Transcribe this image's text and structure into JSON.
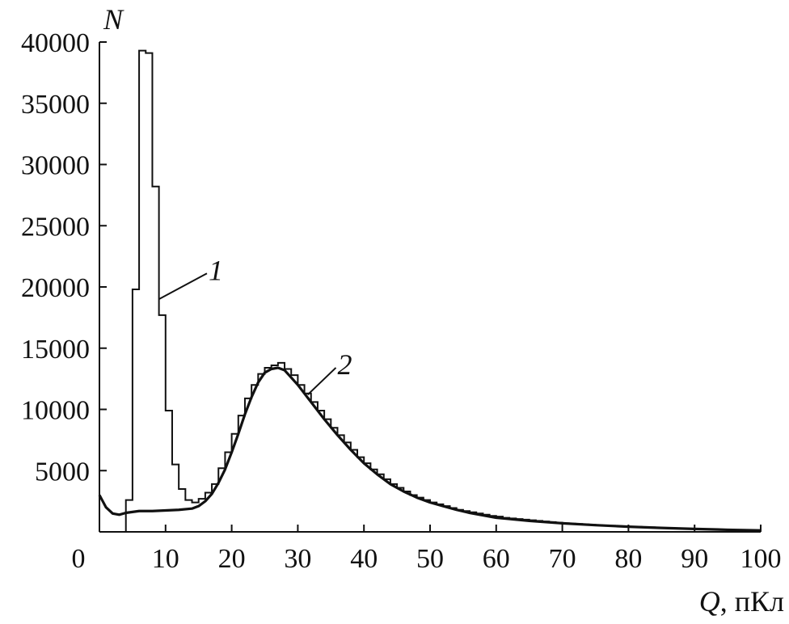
{
  "chart_data": {
    "type": "line",
    "xlabel": {
      "var": "Q",
      "unit": ", пКл"
    },
    "ylabel": "N",
    "xlim": [
      0,
      100
    ],
    "ylim": [
      0,
      40000
    ],
    "xticks": [
      0,
      10,
      20,
      30,
      40,
      50,
      60,
      70,
      80,
      90,
      100
    ],
    "yticks": [
      5000,
      10000,
      15000,
      20000,
      25000,
      30000,
      35000,
      40000
    ],
    "grid": false,
    "series": [
      {
        "name": "1",
        "style": "histogram",
        "bin_width": 1,
        "bins": [
          [
            4,
            2600
          ],
          [
            5,
            19800
          ],
          [
            6,
            39300
          ],
          [
            7,
            39100
          ],
          [
            8,
            28200
          ],
          [
            9,
            17700
          ],
          [
            10,
            9900
          ],
          [
            11,
            5500
          ],
          [
            12,
            3500
          ],
          [
            13,
            2600
          ],
          [
            14,
            2400
          ],
          [
            15,
            2700
          ],
          [
            16,
            3200
          ],
          [
            17,
            3900
          ],
          [
            18,
            5200
          ],
          [
            19,
            6500
          ],
          [
            20,
            8000
          ],
          [
            21,
            9500
          ],
          [
            22,
            10900
          ],
          [
            23,
            12000
          ],
          [
            24,
            12900
          ],
          [
            25,
            13400
          ],
          [
            26,
            13600
          ],
          [
            27,
            13800
          ],
          [
            28,
            13300
          ],
          [
            29,
            12800
          ],
          [
            30,
            12000
          ],
          [
            31,
            11300
          ],
          [
            32,
            10600
          ],
          [
            33,
            9900
          ],
          [
            34,
            9200
          ],
          [
            35,
            8500
          ],
          [
            36,
            7900
          ],
          [
            37,
            7300
          ],
          [
            38,
            6700
          ],
          [
            39,
            6100
          ],
          [
            40,
            5600
          ],
          [
            41,
            5100
          ],
          [
            42,
            4700
          ],
          [
            43,
            4300
          ],
          [
            44,
            3900
          ],
          [
            45,
            3600
          ],
          [
            46,
            3300
          ],
          [
            47,
            3000
          ],
          [
            48,
            2800
          ],
          [
            49,
            2600
          ],
          [
            50,
            2400
          ],
          [
            51,
            2250
          ],
          [
            52,
            2100
          ],
          [
            53,
            1950
          ],
          [
            54,
            1800
          ],
          [
            55,
            1700
          ],
          [
            56,
            1600
          ],
          [
            57,
            1500
          ],
          [
            58,
            1400
          ],
          [
            59,
            1300
          ],
          [
            60,
            1250
          ],
          [
            61,
            1150
          ],
          [
            62,
            1100
          ],
          [
            63,
            1050
          ],
          [
            64,
            1000
          ],
          [
            65,
            950
          ],
          [
            66,
            900
          ],
          [
            67,
            850
          ],
          [
            68,
            800
          ],
          [
            69,
            750
          ],
          [
            70,
            700
          ],
          [
            71,
            670
          ],
          [
            72,
            640
          ],
          [
            73,
            610
          ],
          [
            74,
            580
          ],
          [
            75,
            550
          ],
          [
            76,
            520
          ],
          [
            77,
            500
          ],
          [
            78,
            470
          ],
          [
            79,
            450
          ],
          [
            80,
            430
          ],
          [
            81,
            410
          ],
          [
            82,
            390
          ],
          [
            83,
            370
          ],
          [
            84,
            350
          ],
          [
            85,
            330
          ],
          [
            86,
            310
          ],
          [
            87,
            290
          ],
          [
            88,
            270
          ],
          [
            89,
            250
          ],
          [
            90,
            230
          ],
          [
            91,
            210
          ],
          [
            92,
            200
          ],
          [
            93,
            190
          ],
          [
            94,
            180
          ],
          [
            95,
            170
          ],
          [
            96,
            160
          ],
          [
            97,
            150
          ],
          [
            98,
            140
          ],
          [
            99,
            130
          ]
        ]
      },
      {
        "name": "2",
        "style": "curve",
        "points": [
          [
            0,
            3000
          ],
          [
            1,
            2000
          ],
          [
            2,
            1500
          ],
          [
            3,
            1400
          ],
          [
            4,
            1550
          ],
          [
            6,
            1700
          ],
          [
            8,
            1700
          ],
          [
            10,
            1750
          ],
          [
            12,
            1800
          ],
          [
            14,
            1900
          ],
          [
            15,
            2100
          ],
          [
            16,
            2500
          ],
          [
            17,
            3100
          ],
          [
            18,
            4000
          ],
          [
            19,
            5100
          ],
          [
            20,
            6500
          ],
          [
            21,
            8000
          ],
          [
            22,
            9600
          ],
          [
            23,
            11000
          ],
          [
            24,
            12200
          ],
          [
            25,
            13000
          ],
          [
            26,
            13300
          ],
          [
            27,
            13400
          ],
          [
            28,
            13200
          ],
          [
            29,
            12600
          ],
          [
            30,
            12000
          ],
          [
            31,
            11300
          ],
          [
            32,
            10600
          ],
          [
            34,
            9200
          ],
          [
            36,
            7900
          ],
          [
            38,
            6700
          ],
          [
            40,
            5600
          ],
          [
            42,
            4700
          ],
          [
            44,
            3900
          ],
          [
            46,
            3300
          ],
          [
            48,
            2800
          ],
          [
            50,
            2400
          ],
          [
            52,
            2100
          ],
          [
            54,
            1800
          ],
          [
            56,
            1550
          ],
          [
            58,
            1350
          ],
          [
            60,
            1150
          ],
          [
            62,
            1050
          ],
          [
            65,
            900
          ],
          [
            70,
            700
          ],
          [
            75,
            550
          ],
          [
            80,
            420
          ],
          [
            85,
            320
          ],
          [
            90,
            240
          ],
          [
            95,
            170
          ],
          [
            100,
            120
          ]
        ]
      }
    ],
    "annotations": [
      {
        "label": "1",
        "target": [
          9,
          19000
        ],
        "text_at": [
          16.5,
          21500
        ]
      },
      {
        "label": "2",
        "target": [
          31.5,
          11200
        ],
        "text_at": [
          36,
          13800
        ]
      }
    ]
  }
}
